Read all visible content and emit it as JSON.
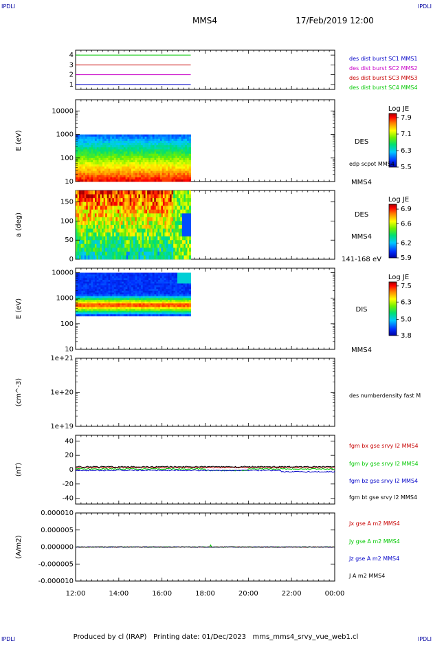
{
  "corner_label": "IPDLI",
  "header": {
    "title": "MMS4",
    "datetime": "17/Feb/2019 12:00"
  },
  "footer": "Produced by cl (IRAP)   Printing date: 01/Dec/2023   mms_mms4_srvy_vue_web1.cl",
  "colors": {
    "mms1": "#0000c8",
    "mms2": "#c800c8",
    "mms3": "#c80000",
    "mms4": "#00c800",
    "black": "#000000",
    "blue": "#0000ff"
  },
  "chart_data": [
    {
      "type": "line",
      "panel": "spacecraft-status",
      "x_start": "12:00",
      "x_end": "00:00",
      "ylim": [
        0.5,
        4.5
      ],
      "yticks": [
        "1",
        "2",
        "3",
        "4"
      ],
      "series": [
        {
          "name": "des dist burst SC1 MMS1",
          "level": 1,
          "t_range": [
            "12:00",
            "17:20"
          ],
          "color": "#0000c8"
        },
        {
          "name": "des dist burst SC2 MMS2",
          "level": 2,
          "t_range": [
            "12:00",
            "17:20"
          ],
          "color": "#c800c8"
        },
        {
          "name": "des dist burst SC3 MMS3",
          "level": 3,
          "t_range": [
            "12:00",
            "17:20"
          ],
          "color": "#c80000"
        },
        {
          "name": "des dist burst SC4 MMS4",
          "level": 4,
          "t_range": [
            "12:00",
            "17:20"
          ],
          "color": "#00c800"
        }
      ]
    },
    {
      "type": "heatmap",
      "panel": "des-energy",
      "ylabel": "E (eV)",
      "yscale": "log",
      "ylim": [
        10,
        30000
      ],
      "yticks": [
        "10",
        "100",
        "1000",
        "10000"
      ],
      "data_range": [
        "12:00",
        "17:20"
      ],
      "data_ylim": [
        10,
        1000
      ],
      "side_labels": [
        "DES",
        "edp scpot MMS4",
        "MMS4"
      ],
      "colorbar": {
        "title": "Log JE",
        "range": [
          5.5,
          8.1
        ],
        "ticks": [
          "7.9",
          "7.1",
          "6.3",
          "5.5"
        ]
      }
    },
    {
      "type": "heatmap",
      "panel": "des-pitch-angle",
      "ylabel": "a (deg)",
      "ylim": [
        0,
        180
      ],
      "yticks": [
        "0",
        "50",
        "100",
        "150"
      ],
      "data_range": [
        "12:00",
        "17:20"
      ],
      "side_labels": [
        "DES",
        "MMS4",
        "141-168 eV"
      ],
      "colorbar": {
        "title": "Log JE",
        "range": [
          5.9,
          7.0
        ],
        "ticks": [
          "6.9",
          "6.6",
          "6.2",
          "5.9"
        ]
      }
    },
    {
      "type": "heatmap",
      "panel": "dis-energy",
      "ylabel": "E (eV)",
      "yscale": "log",
      "ylim": [
        10,
        15000
      ],
      "yticks": [
        "10",
        "100",
        "1000",
        "10000"
      ],
      "data_range": [
        "12:00",
        "17:20"
      ],
      "data_ylim": [
        200,
        10000
      ],
      "side_labels": [
        "DIS",
        "MMS4"
      ],
      "colorbar": {
        "title": "Log JE",
        "range": [
          3.8,
          7.8
        ],
        "ticks": [
          "7.5",
          "6.3",
          "5.0",
          "3.8"
        ]
      }
    },
    {
      "type": "line",
      "panel": "density",
      "ylabel": "(cm^-3)",
      "yscale": "log",
      "ylim": [
        1e+19,
        1e+21
      ],
      "yticks": [
        "1e+19",
        "1e+20",
        "1e+21"
      ],
      "series": [
        {
          "name": "des numberdensity fast M",
          "values": []
        }
      ]
    },
    {
      "type": "line",
      "panel": "magnetic-field",
      "ylabel": "(nT)",
      "ylim": [
        -48,
        48
      ],
      "yticks": [
        "-40",
        "-20",
        "0",
        "20",
        "40"
      ],
      "series": [
        {
          "name": "fgm bx gse srvy l2 MMS4",
          "color": "#c80000",
          "approx_level": 3
        },
        {
          "name": "fgm by gse srvy l2 MMS4",
          "color": "#00c800",
          "approx_level": 1
        },
        {
          "name": "fgm bz gse srvy l2 MMS4",
          "color": "#0000c8",
          "approx_level": -1
        },
        {
          "name": "fgm bt gse srvy l2 MMS4",
          "color": "#000000",
          "approx_level": 4
        }
      ]
    },
    {
      "type": "line",
      "panel": "current-density",
      "ylabel": "(A/m2)",
      "ylim": [
        -1e-05,
        1e-05
      ],
      "yticks": [
        "-0.000010",
        "-0.000005",
        "0.000000",
        "0.000005",
        "0.000010"
      ],
      "series": [
        {
          "name": "Jx gse A m2 MMS4",
          "color": "#c80000"
        },
        {
          "name": "Jy gse A m2 MMS4",
          "color": "#00c800"
        },
        {
          "name": "Jz gse A m2 MMS4",
          "color": "#0000c8"
        },
        {
          "name": "J A m2 MMS4",
          "color": "#000000"
        }
      ]
    }
  ],
  "xaxis": {
    "ticks": [
      "12:00",
      "14:00",
      "16:00",
      "18:00",
      "20:00",
      "22:00",
      "00:00"
    ]
  }
}
